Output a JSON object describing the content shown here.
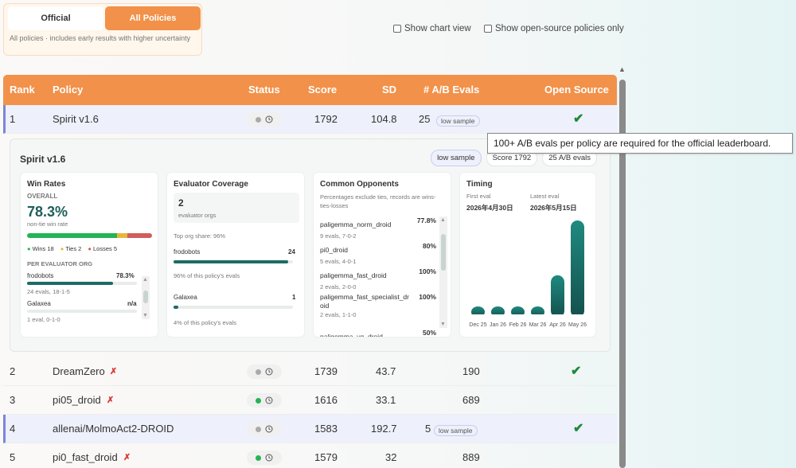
{
  "toggle": {
    "official": "Official",
    "all": "All Policies",
    "description": "All policies · includes early results with higher uncertainty"
  },
  "options": {
    "chart_view": "Show chart view",
    "open_source_only": "Show open-source policies only"
  },
  "table": {
    "headers": {
      "rank": "Rank",
      "policy": "Policy",
      "status": "Status",
      "score": "Score",
      "sd": "SD",
      "evals": "# A/B Evals",
      "open_source": "Open Source"
    },
    "rows": [
      {
        "rank": "1",
        "policy": "Spirit v1.6",
        "score": "1792",
        "sd": "104.8",
        "evals": "25",
        "badge": "low sample",
        "check": "✔"
      },
      {
        "rank": "2",
        "policy": "DreamZero",
        "score": "1739",
        "sd": "43.7",
        "evals": "190",
        "check": "✔"
      },
      {
        "rank": "3",
        "policy": "pi05_droid",
        "score": "1616",
        "sd": "33.1",
        "evals": "689"
      },
      {
        "rank": "4",
        "policy": "allenai/MolmoAct2-DROID",
        "score": "1583",
        "sd": "192.7",
        "evals": "5",
        "badge": "low sample",
        "check": "✔"
      },
      {
        "rank": "5",
        "policy": "pi0_fast_droid",
        "score": "1579",
        "sd": "32",
        "evals": "889"
      }
    ]
  },
  "detail": {
    "title": "Spirit v1.6",
    "badge_low": "low sample",
    "badge_score": "Score 1792",
    "badge_evals": "25 A/B evals",
    "win_rates": {
      "title": "Win Rates",
      "overall_label": "OVERALL",
      "overall_value": "78.3%",
      "overall_sub": "non-tie win rate",
      "wins": "Wins 18",
      "ties": "Ties 2",
      "losses": "Losses 5",
      "per_org_label": "PER EVALUATOR ORG",
      "orgs": [
        {
          "name": "frodobots",
          "value": "78.3%",
          "sub": "24 evals, 18-1-5",
          "fill": 0.78
        },
        {
          "name": "Galaxea",
          "value": "n/a",
          "sub": "1 eval, 0-1-0",
          "fill": 0
        }
      ]
    },
    "coverage": {
      "title": "Evaluator Coverage",
      "count": "2",
      "count_label": "evaluator orgs",
      "top_share": "Top org share: 96%",
      "orgs": [
        {
          "name": "frodobots",
          "value": "24",
          "sub": "96% of this policy's evals",
          "fill": 0.96
        },
        {
          "name": "Galaxea",
          "value": "1",
          "sub": "4% of this policy's evals",
          "fill": 0.04
        }
      ]
    },
    "opponents": {
      "title": "Common Opponents",
      "note": "Percentages exclude ties, records are wins-ties-losses",
      "items": [
        {
          "name": "paligemma_norm_droid",
          "pct": "77.8%",
          "sub": "9 evals, 7-0-2"
        },
        {
          "name": "pi0_droid",
          "pct": "80%",
          "sub": "5 evals, 4-0-1"
        },
        {
          "name": "paligemma_fast_droid",
          "pct": "100%",
          "sub": "2 evals, 2-0-0"
        },
        {
          "name": "paligemma_fast_specialist_droid",
          "pct": "100%",
          "sub": "2 evals, 1-1-0"
        },
        {
          "name": "paligemma_vq_droid",
          "pct": "50%",
          "sub": ""
        }
      ]
    },
    "timing": {
      "title": "Timing",
      "first_label": "First eval",
      "first_value": "2026年4月30日",
      "latest_label": "Latest eval",
      "latest_value": "2026年5月15日"
    }
  },
  "chart_data": {
    "type": "bar",
    "categories": [
      "Dec 25",
      "Jan 26",
      "Feb 26",
      "Mar 26",
      "Apr 26",
      "May 26"
    ],
    "values": [
      1,
      1,
      1,
      1,
      5,
      12
    ],
    "title": "",
    "xlabel": "",
    "ylabel": ""
  },
  "tooltip": "100+ A/B evals per policy are required for the official leaderboard.",
  "colors": {
    "accent": "#f2914a",
    "teal": "#1d6b66",
    "win": "#22b455",
    "tie": "#e7b63b",
    "loss": "#d15d5d"
  }
}
